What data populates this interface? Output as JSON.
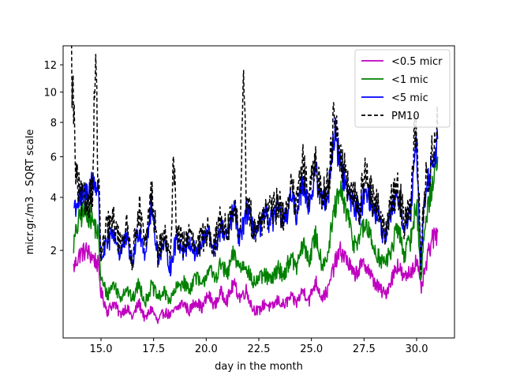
{
  "chart_data": {
    "type": "line",
    "title": "",
    "xlabel": "day in the month",
    "ylabel": "micr.gr./m3 - SQRT scale",
    "y_scale": "sqrt",
    "xlim": [
      13.2,
      31.8
    ],
    "ylim": [
      0.2,
      13.5
    ],
    "x_ticks": [
      15.0,
      17.5,
      20.0,
      22.5,
      25.0,
      27.5,
      30.0
    ],
    "x_tick_labels": [
      "15.0",
      "17.5",
      "20.0",
      "22.5",
      "25.0",
      "27.5",
      "30.0"
    ],
    "y_ticks": [
      2,
      4,
      6,
      8,
      10,
      12
    ],
    "y_tick_labels": [
      "2",
      "4",
      "6",
      "8",
      "10",
      "12"
    ],
    "legend_position": "top-right",
    "series": [
      {
        "name": "<0.5 micr",
        "color": "#bf00bf",
        "style": "solid",
        "x": [
          13.7,
          14.0,
          14.3,
          14.6,
          14.85,
          15.0,
          15.3,
          15.6,
          15.9,
          16.2,
          16.5,
          16.8,
          17.1,
          17.4,
          17.7,
          18.0,
          18.3,
          18.6,
          18.9,
          19.2,
          19.5,
          19.8,
          20.1,
          20.4,
          20.7,
          21.0,
          21.3,
          21.6,
          21.9,
          22.2,
          22.5,
          22.8,
          23.1,
          23.4,
          23.7,
          24.0,
          24.3,
          24.6,
          24.9,
          25.2,
          25.5,
          25.8,
          26.1,
          26.4,
          26.7,
          27.0,
          27.3,
          27.6,
          27.9,
          28.2,
          28.5,
          28.8,
          29.1,
          29.4,
          29.7,
          30.0,
          30.2,
          30.4,
          30.7,
          31.0
        ],
        "y": [
          1.5,
          1.9,
          2.0,
          1.8,
          1.6,
          0.9,
          0.55,
          0.7,
          0.5,
          0.62,
          0.45,
          0.7,
          0.42,
          0.6,
          0.38,
          0.55,
          0.48,
          0.6,
          0.7,
          0.55,
          0.75,
          0.6,
          0.85,
          0.65,
          0.9,
          0.75,
          1.1,
          0.8,
          0.95,
          0.6,
          0.55,
          0.7,
          0.6,
          0.75,
          0.65,
          0.8,
          0.7,
          0.95,
          0.75,
          1.15,
          0.8,
          0.95,
          1.6,
          2.0,
          1.7,
          1.3,
          1.5,
          1.6,
          1.2,
          1.0,
          0.85,
          1.2,
          1.6,
          1.2,
          1.4,
          1.7,
          0.95,
          1.4,
          2.3,
          2.6
        ]
      },
      {
        "name": "<1 mic",
        "color": "#008000",
        "style": "solid",
        "x": [
          13.7,
          14.0,
          14.3,
          14.6,
          14.85,
          15.0,
          15.3,
          15.6,
          15.9,
          16.2,
          16.5,
          16.8,
          17.1,
          17.4,
          17.7,
          18.0,
          18.3,
          18.6,
          18.9,
          19.2,
          19.5,
          19.8,
          20.1,
          20.4,
          20.7,
          21.0,
          21.3,
          21.6,
          21.9,
          22.2,
          22.5,
          22.8,
          23.1,
          23.4,
          23.7,
          24.0,
          24.3,
          24.6,
          24.9,
          25.2,
          25.5,
          25.8,
          26.1,
          26.4,
          26.7,
          27.0,
          27.3,
          27.6,
          27.9,
          28.2,
          28.5,
          28.8,
          29.1,
          29.4,
          29.7,
          30.0,
          30.2,
          30.4,
          30.7,
          31.0
        ],
        "y": [
          2.2,
          3.2,
          3.5,
          3.0,
          2.6,
          1.2,
          0.85,
          1.1,
          0.8,
          1.0,
          0.75,
          1.1,
          0.7,
          1.05,
          0.8,
          0.9,
          0.75,
          1.0,
          1.15,
          0.95,
          1.3,
          1.0,
          1.5,
          1.2,
          1.6,
          1.3,
          1.9,
          1.5,
          1.6,
          1.1,
          1.2,
          1.3,
          1.15,
          1.5,
          1.3,
          1.8,
          1.5,
          2.2,
          1.7,
          2.5,
          1.6,
          1.9,
          3.5,
          4.2,
          3.3,
          2.2,
          2.5,
          2.9,
          2.2,
          1.8,
          1.6,
          2.0,
          2.8,
          1.9,
          2.3,
          3.8,
          1.1,
          2.8,
          4.5,
          6.0
        ]
      },
      {
        "name": "<5 mic",
        "color": "#0000ff",
        "style": "solid",
        "x": [
          13.7,
          14.0,
          14.3,
          14.6,
          14.85,
          15.0,
          15.3,
          15.6,
          15.9,
          16.2,
          16.5,
          16.8,
          17.1,
          17.4,
          17.7,
          18.0,
          18.3,
          18.6,
          18.9,
          19.2,
          19.5,
          19.8,
          20.1,
          20.4,
          20.7,
          21.0,
          21.3,
          21.6,
          21.9,
          22.2,
          22.5,
          22.8,
          23.1,
          23.4,
          23.7,
          24.0,
          24.3,
          24.6,
          24.9,
          25.2,
          25.5,
          25.8,
          26.1,
          26.4,
          26.7,
          27.0,
          27.3,
          27.6,
          27.9,
          28.2,
          28.5,
          28.8,
          29.1,
          29.4,
          29.7,
          30.0,
          30.2,
          30.4,
          30.7,
          31.0
        ],
        "y": [
          3.6,
          3.9,
          4.2,
          4.8,
          4.5,
          1.8,
          2.2,
          2.6,
          1.9,
          2.4,
          1.6,
          2.8,
          1.9,
          3.6,
          1.8,
          2.2,
          1.5,
          2.4,
          2.0,
          2.3,
          1.9,
          2.2,
          2.6,
          2.0,
          2.8,
          2.4,
          3.5,
          2.3,
          3.5,
          2.8,
          2.6,
          3.2,
          3.0,
          3.5,
          2.9,
          4.0,
          3.3,
          4.8,
          3.6,
          5.2,
          3.8,
          4.2,
          7.5,
          5.5,
          4.2,
          3.8,
          3.3,
          4.6,
          3.6,
          3.2,
          2.2,
          3.5,
          4.2,
          2.8,
          3.2,
          6.5,
          1.5,
          4.0,
          5.5,
          7.0
        ]
      },
      {
        "name": "PM10",
        "color": "#000000",
        "style": "dashed",
        "x": [
          13.6,
          13.7,
          13.8,
          13.9,
          14.0,
          14.3,
          14.6,
          14.75,
          14.85,
          15.0,
          15.3,
          15.6,
          15.9,
          16.2,
          16.5,
          16.8,
          17.1,
          17.4,
          17.7,
          18.0,
          18.3,
          18.45,
          18.6,
          18.9,
          19.2,
          19.5,
          19.8,
          20.1,
          20.4,
          20.7,
          21.0,
          21.3,
          21.6,
          21.8,
          21.9,
          22.2,
          22.5,
          22.8,
          23.1,
          23.4,
          23.7,
          24.0,
          24.3,
          24.6,
          24.9,
          25.2,
          25.5,
          25.8,
          26.1,
          26.4,
          26.7,
          27.0,
          27.3,
          27.6,
          27.9,
          28.2,
          28.5,
          28.8,
          29.1,
          29.4,
          29.7,
          29.9,
          30.0,
          30.2,
          30.4,
          30.7,
          31.0
        ],
        "y": [
          11.8,
          9.0,
          5.0,
          4.5,
          4.0,
          3.8,
          4.4,
          12.5,
          5.2,
          1.8,
          2.8,
          3.0,
          2.2,
          2.8,
          1.7,
          3.6,
          2.0,
          4.2,
          1.9,
          2.5,
          1.6,
          6.2,
          2.6,
          2.2,
          2.5,
          2.0,
          2.4,
          2.8,
          2.1,
          3.2,
          2.6,
          3.6,
          2.4,
          11.0,
          3.8,
          3.0,
          2.8,
          3.5,
          3.3,
          3.8,
          3.2,
          4.4,
          3.6,
          5.5,
          3.9,
          5.8,
          4.0,
          4.6,
          8.7,
          6.0,
          4.5,
          4.0,
          3.6,
          5.5,
          3.8,
          3.6,
          2.4,
          3.8,
          4.6,
          3.0,
          3.5,
          7.5,
          7.0,
          1.6,
          4.4,
          6.0,
          7.8
        ]
      }
    ]
  }
}
